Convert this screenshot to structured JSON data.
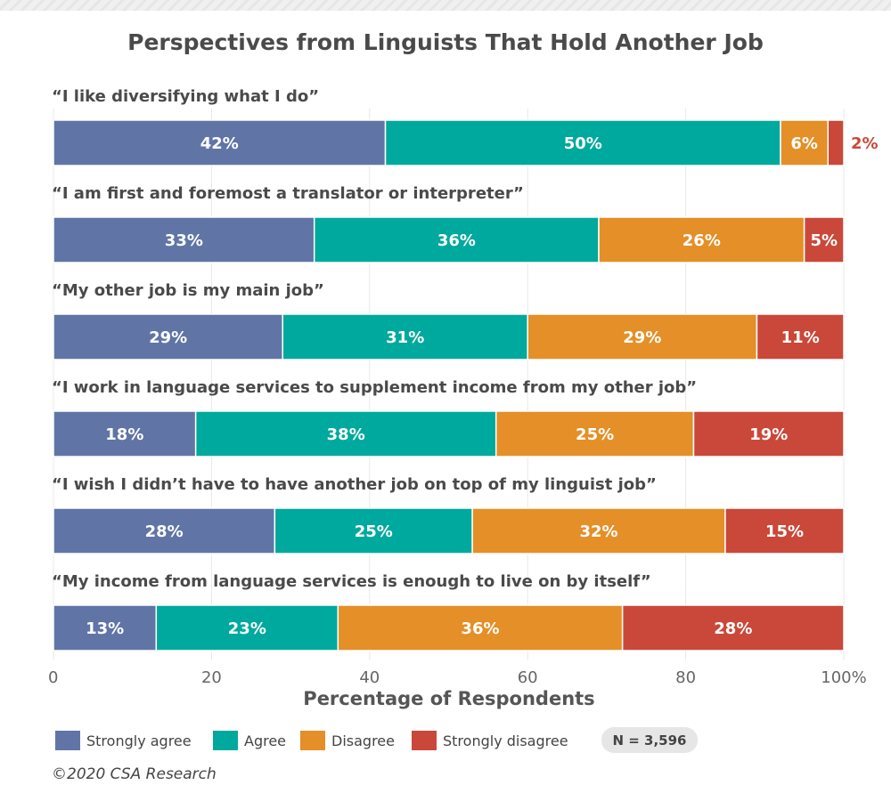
{
  "chart_data": {
    "type": "bar",
    "orientation": "horizontal",
    "stacked": true,
    "title": "Perspectives from Linguists That Hold Another Job",
    "xlabel": "Percentage of Respondents",
    "ylabel": "",
    "xlim": [
      0,
      100
    ],
    "x_ticks": [
      "0",
      "20",
      "40",
      "60",
      "80",
      "100%"
    ],
    "grid": "vertical",
    "legend_position": "bottom-left",
    "categories": [
      "“I like diversifying what I do”",
      "“I am first and foremost a translator or interpreter”",
      "“My other job is my main job”",
      "“I work in language services to supplement income from my other job”",
      "“I wish I didn’t have to have another job on top of my linguist job”",
      "“My income from language services is enough to live on by itself”"
    ],
    "series": [
      {
        "name": "Strongly agree",
        "color": "#6075a6",
        "values": [
          42,
          33,
          29,
          18,
          28,
          13
        ]
      },
      {
        "name": "Agree",
        "color": "#00a99d",
        "values": [
          50,
          36,
          31,
          38,
          25,
          23
        ]
      },
      {
        "name": "Disagree",
        "color": "#e48f27",
        "values": [
          6,
          26,
          29,
          25,
          32,
          36
        ]
      },
      {
        "name": "Strongly disagree",
        "color": "#c9483a",
        "values": [
          2,
          5,
          11,
          19,
          15,
          28
        ]
      }
    ],
    "sample_size": "N = 3,596",
    "credit": "©2020 CSA Research"
  }
}
